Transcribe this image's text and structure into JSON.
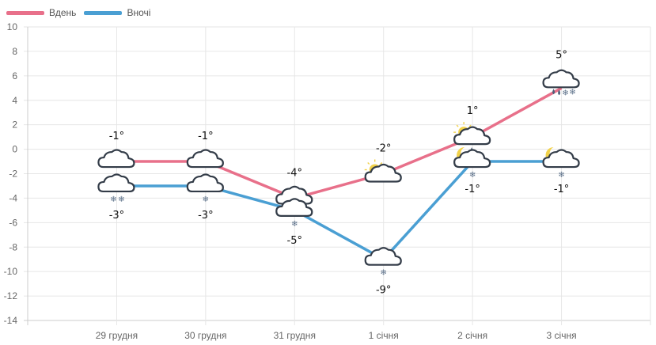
{
  "legend": [
    {
      "label": "Вдень",
      "color": "#e8708a"
    },
    {
      "label": "Вночі",
      "color": "#4a9fd3"
    }
  ],
  "chart_data": {
    "type": "line",
    "title": "",
    "xlabel": "",
    "ylabel": "",
    "categories": [
      "29 грудня",
      "30 грудня",
      "31 грудня",
      "1 січня",
      "2 січня",
      "3 січня"
    ],
    "series": [
      {
        "name": "Вдень",
        "color": "#e8708a",
        "values": [
          -1,
          -1,
          -4,
          -2,
          1,
          5
        ],
        "labels": [
          "-1°",
          "-1°",
          "-4°",
          "-2°",
          "1°",
          "5°"
        ],
        "icons": [
          "cloud",
          "cloud",
          "cloud",
          "sun-cloud",
          "sun-cloud-rain",
          "cloud-rain-snow"
        ]
      },
      {
        "name": "Вночі",
        "color": "#4a9fd3",
        "values": [
          -3,
          -3,
          -5,
          -9,
          -1,
          -1
        ],
        "labels": [
          "-3°",
          "-3°",
          "-5°",
          "-9°",
          "-1°",
          "-1°"
        ],
        "icons": [
          "cloud-snow-2",
          "cloud-snow",
          "cloud-snow",
          "cloud-snow",
          "moon-cloud-snow",
          "moon-cloud-snow"
        ]
      }
    ],
    "yticks": [
      10,
      8,
      6,
      4,
      2,
      0,
      -2,
      -4,
      -6,
      -8,
      -10,
      -12,
      -14
    ],
    "ylim": [
      -14,
      10
    ],
    "grid": true,
    "legend_position": "top-left"
  }
}
